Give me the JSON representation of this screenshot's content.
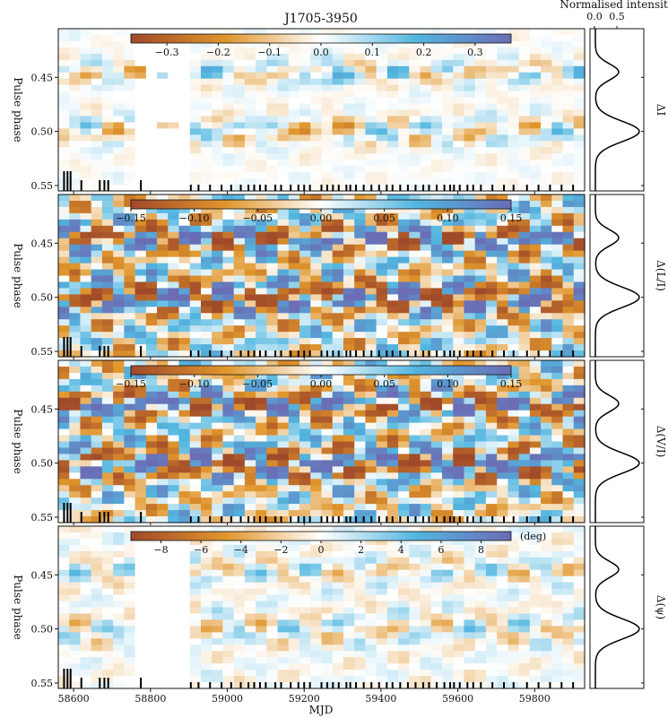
{
  "figure": {
    "title": "J1705-3950",
    "xlabel": "MJD",
    "profile_header": "Normalised intensity",
    "profile_ticks": [
      "0.0",
      "0.5"
    ],
    "profile_values": [
      0.0,
      0.5
    ]
  },
  "chart_data": [
    {
      "type": "heatmap",
      "panel": "delta-I",
      "ylabel": "Pulse phase",
      "right_label": "ΔI",
      "xlim": [
        58560,
        59930
      ],
      "ylim": [
        0.555,
        0.405
      ],
      "xticks": [
        "58600",
        "58800",
        "59000",
        "59200",
        "59400",
        "59600",
        "59800"
      ],
      "xtick_values": [
        58600,
        58800,
        59000,
        59200,
        59400,
        59600,
        59800
      ],
      "yticks": [
        "0.45",
        "0.50",
        "0.55"
      ],
      "ytick_values": [
        0.45,
        0.5,
        0.55
      ],
      "colorbar": {
        "range": [
          -0.37,
          0.37
        ],
        "ticks": [
          "−0.3",
          "−0.2",
          "−0.1",
          "0.0",
          "0.1",
          "0.2",
          "0.3"
        ],
        "tick_values": [
          -0.3,
          -0.2,
          -0.1,
          0.0,
          0.1,
          0.2,
          0.3
        ],
        "unit": ""
      }
    },
    {
      "type": "heatmap",
      "panel": "delta-L-over-I",
      "ylabel": "Pulse phase",
      "right_label": "Δ(L/I)",
      "xlim": [
        58560,
        59930
      ],
      "ylim": [
        0.555,
        0.405
      ],
      "yticks": [
        "0.45",
        "0.50",
        "0.55"
      ],
      "ytick_values": [
        0.45,
        0.5,
        0.55
      ],
      "colorbar": {
        "range": [
          -0.15,
          0.15
        ],
        "ticks": [
          "−0.15",
          "−0.10",
          "−0.05",
          "0.00",
          "0.05",
          "0.10",
          "0.15"
        ],
        "tick_values": [
          -0.15,
          -0.1,
          -0.05,
          0.0,
          0.05,
          0.1,
          0.15
        ],
        "unit": ""
      }
    },
    {
      "type": "heatmap",
      "panel": "delta-V-over-I",
      "ylabel": "Pulse phase",
      "right_label": "Δ(V/I)",
      "xlim": [
        58560,
        59930
      ],
      "ylim": [
        0.555,
        0.405
      ],
      "yticks": [
        "0.45",
        "0.50",
        "0.55"
      ],
      "ytick_values": [
        0.45,
        0.5,
        0.55
      ],
      "colorbar": {
        "range": [
          -0.15,
          0.15
        ],
        "ticks": [
          "−0.15",
          "−0.10",
          "−0.05",
          "0.00",
          "0.05",
          "0.10",
          "0.15"
        ],
        "tick_values": [
          -0.15,
          -0.1,
          -0.05,
          0.0,
          0.05,
          0.1,
          0.15
        ],
        "unit": ""
      }
    },
    {
      "type": "heatmap",
      "panel": "delta-psi",
      "ylabel": "Pulse phase",
      "right_label": "Δ(ψ)",
      "xlim": [
        58560,
        59930
      ],
      "ylim": [
        0.555,
        0.405
      ],
      "xticks": [
        "58600",
        "58800",
        "59000",
        "59200",
        "59400",
        "59600",
        "59800"
      ],
      "xtick_values": [
        58600,
        58800,
        59000,
        59200,
        59400,
        59600,
        59800
      ],
      "yticks": [
        "0.45",
        "0.50",
        "0.55"
      ],
      "ytick_values": [
        0.45,
        0.5,
        0.55
      ],
      "colorbar": {
        "range": [
          -9.5,
          9.5
        ],
        "ticks": [
          "−8",
          "−6",
          "−4",
          "−2",
          "0",
          "2",
          "4",
          "6",
          "8"
        ],
        "tick_values": [
          -8,
          -6,
          -4,
          -2,
          0,
          2,
          4,
          6,
          8
        ],
        "unit": "(deg)"
      }
    }
  ],
  "observation_epochs_mjd": [
    58575,
    58584,
    58592,
    58620,
    58668,
    58680,
    58690,
    58775,
    58905,
    58925,
    58955,
    58985,
    59010,
    59035,
    59055,
    59070,
    59085,
    59100,
    59125,
    59140,
    59165,
    59185,
    59200,
    59215,
    59245,
    59260,
    59275,
    59290,
    59310,
    59320,
    59335,
    59355,
    59375,
    59395,
    59415,
    59430,
    59450,
    59470,
    59490,
    59510,
    59525,
    59545,
    59565,
    59580,
    59590,
    59605,
    59625,
    59640,
    59660,
    59690,
    59720,
    59745,
    59780,
    59810,
    59840,
    59870,
    59900
  ],
  "colors": {
    "diverging_neg_end": "#a0492a",
    "diverging_neg_mid": "#e0962c",
    "diverging_center": "#ffffff",
    "diverging_pos_mid": "#52b6df",
    "diverging_pos_end": "#6b6cb4"
  },
  "profile_curve": {
    "baseline": 0.02,
    "components": [
      {
        "center": 0.445,
        "width": 0.0075,
        "amplitude": 0.52
      },
      {
        "center": 0.5,
        "width": 0.0095,
        "amplitude": 0.98
      }
    ]
  }
}
